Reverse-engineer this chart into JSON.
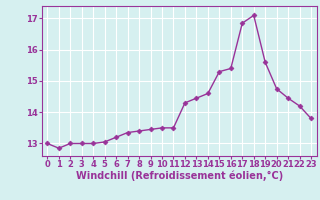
{
  "x": [
    0,
    1,
    2,
    3,
    4,
    5,
    6,
    7,
    8,
    9,
    10,
    11,
    12,
    13,
    14,
    15,
    16,
    17,
    18,
    19,
    20,
    21,
    22,
    23
  ],
  "y": [
    13.0,
    12.85,
    13.0,
    13.0,
    13.0,
    13.05,
    13.2,
    13.35,
    13.4,
    13.45,
    13.5,
    13.5,
    14.3,
    14.45,
    14.6,
    15.3,
    15.4,
    16.85,
    17.1,
    15.6,
    14.75,
    14.45,
    14.2,
    13.8
  ],
  "line_color": "#993399",
  "marker": "D",
  "marker_size": 2.5,
  "linewidth": 1.0,
  "xlabel": "Windchill (Refroidissement éolien,°C)",
  "xlabel_fontsize": 7.0,
  "ylim": [
    12.6,
    17.4
  ],
  "xlim": [
    -0.5,
    23.5
  ],
  "yticks": [
    13,
    14,
    15,
    16,
    17
  ],
  "xticks": [
    0,
    1,
    2,
    3,
    4,
    5,
    6,
    7,
    8,
    9,
    10,
    11,
    12,
    13,
    14,
    15,
    16,
    17,
    18,
    19,
    20,
    21,
    22,
    23
  ],
  "tick_fontsize": 6.0,
  "background_color": "#d6f0f0",
  "grid_color": "#ffffff",
  "spine_color": "#993399"
}
